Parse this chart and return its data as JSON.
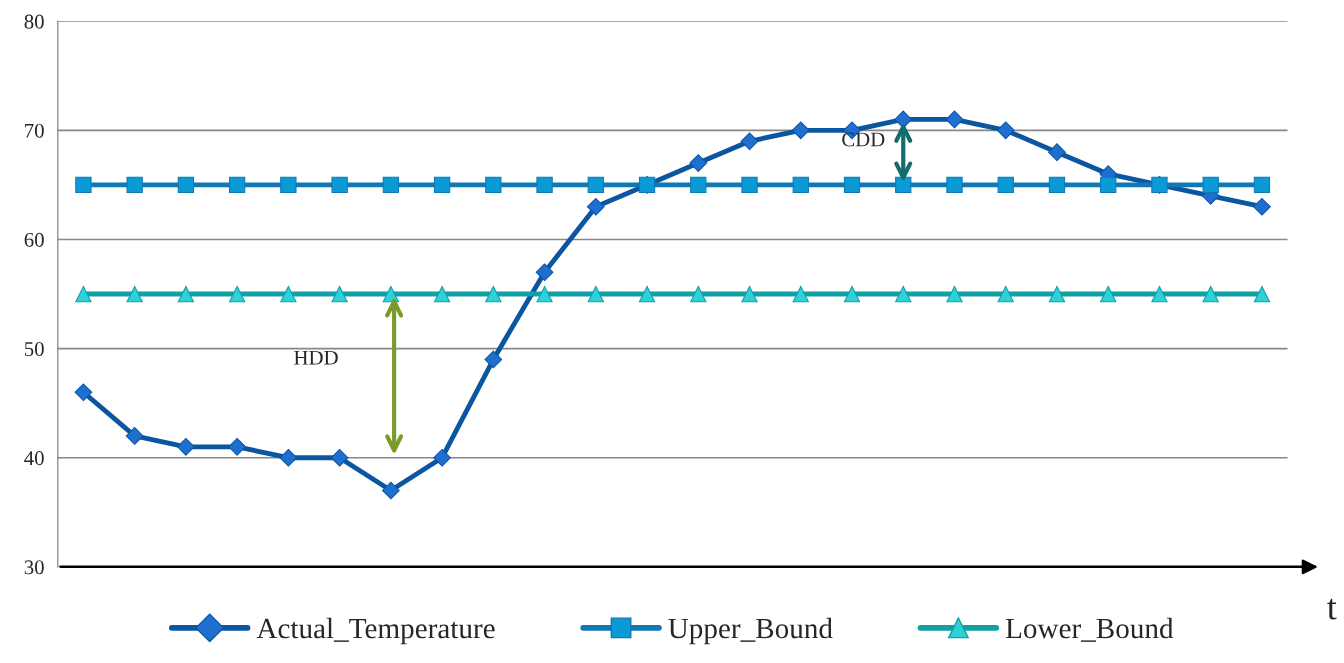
{
  "chart_data": {
    "type": "line",
    "xlabel": "t",
    "categories": [
      null,
      null,
      null,
      null,
      null,
      null,
      null,
      null,
      null,
      null,
      null,
      null,
      null,
      null,
      null,
      null,
      null,
      null,
      null,
      null,
      null,
      null,
      null,
      null
    ],
    "series": [
      {
        "name": "Actual_Temperature",
        "color": "#0b56a0",
        "marker": "diamond",
        "values": [
          46,
          42,
          41,
          41,
          40,
          40,
          37,
          40,
          49,
          57,
          63,
          65,
          67,
          69,
          70,
          70,
          71,
          71,
          70,
          68,
          66,
          65,
          64,
          63
        ]
      },
      {
        "name": "Upper_Bound",
        "color": "#0f78b5",
        "marker": "square",
        "values": [
          65,
          65,
          65,
          65,
          65,
          65,
          65,
          65,
          65,
          65,
          65,
          65,
          65,
          65,
          65,
          65,
          65,
          65,
          65,
          65,
          65,
          65,
          65,
          65
        ]
      },
      {
        "name": "Lower_Bound",
        "color": "#11a0a5",
        "marker": "triangle",
        "values": [
          55,
          55,
          55,
          55,
          55,
          55,
          55,
          55,
          55,
          55,
          55,
          55,
          55,
          55,
          55,
          55,
          55,
          55,
          55,
          55,
          55,
          55,
          55,
          55
        ]
      }
    ],
    "ylim": [
      30,
      80
    ],
    "yticks": [
      30,
      40,
      50,
      60,
      70,
      80
    ],
    "grid": "y",
    "legend": "bottom",
    "annotations": [
      "HDD",
      "CDD"
    ]
  }
}
